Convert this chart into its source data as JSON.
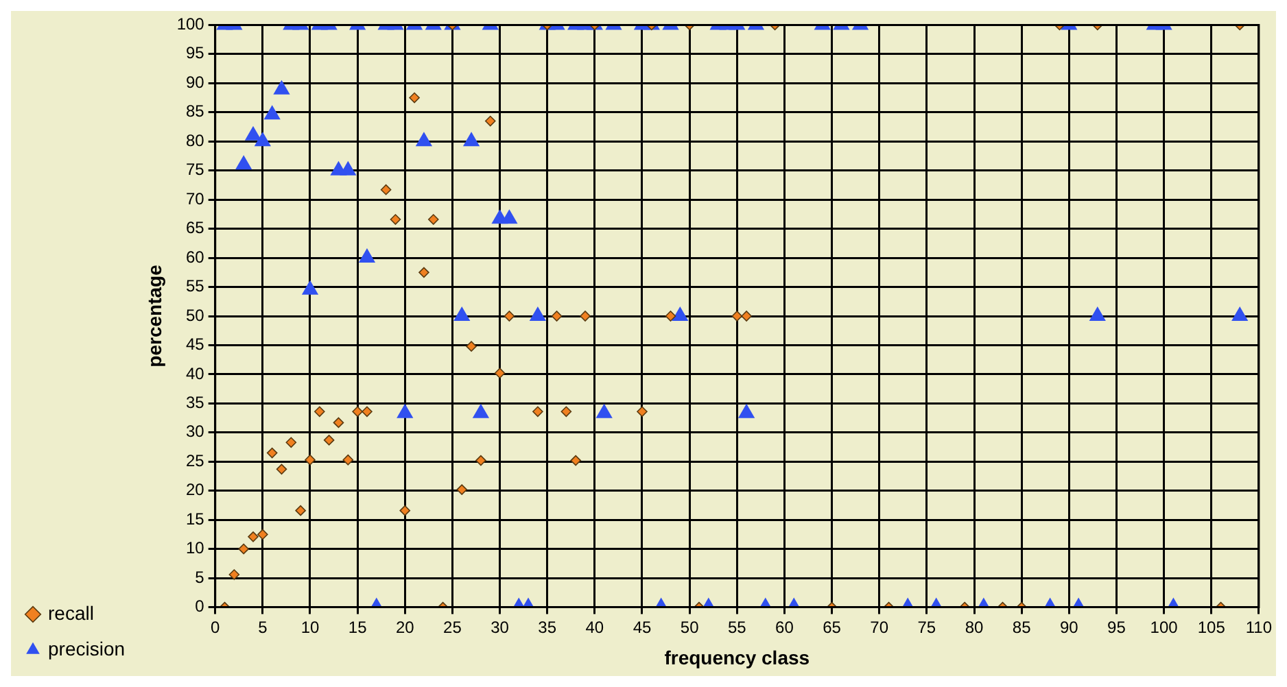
{
  "chart_data": {
    "type": "scatter",
    "xlabel": "frequency class",
    "ylabel": "percentage",
    "xlim": [
      0,
      110
    ],
    "ylim": [
      0,
      100
    ],
    "xticks": [
      0,
      5,
      10,
      15,
      20,
      25,
      30,
      35,
      40,
      45,
      50,
      55,
      60,
      65,
      70,
      75,
      80,
      85,
      90,
      95,
      100,
      105,
      110
    ],
    "yticks": [
      0,
      5,
      10,
      15,
      20,
      25,
      30,
      35,
      40,
      45,
      50,
      55,
      60,
      65,
      70,
      75,
      80,
      85,
      90,
      95,
      100
    ],
    "grid": true,
    "legend": "bottom left",
    "series": [
      {
        "name": "recall",
        "color": "#f08020",
        "marker": "diamond",
        "x": [
          1,
          2,
          3,
          4,
          5,
          6,
          7,
          8,
          9,
          10,
          11,
          12,
          13,
          14,
          15,
          16,
          18,
          19,
          20,
          21,
          22,
          23,
          24,
          25,
          26,
          27,
          28,
          29,
          30,
          31,
          34,
          35,
          36,
          37,
          38,
          39,
          40,
          45,
          46,
          48,
          50,
          51,
          55,
          56,
          59,
          65,
          71,
          79,
          83,
          85,
          89,
          93,
          106,
          108
        ],
        "values": [
          0,
          5.6,
          10,
          12.1,
          12.5,
          26.5,
          23.7,
          28.3,
          16.6,
          25.3,
          33.6,
          28.7,
          31.7,
          25.3,
          33.6,
          33.6,
          71.7,
          66.6,
          16.6,
          87.5,
          57.5,
          66.6,
          0,
          100,
          20.2,
          44.8,
          25.2,
          83.5,
          40.2,
          50,
          33.6,
          100,
          50,
          33.6,
          25.2,
          50,
          100,
          33.6,
          100,
          50,
          100,
          0,
          50,
          50,
          100,
          0,
          0,
          0,
          0,
          0,
          100,
          100,
          0,
          100
        ]
      },
      {
        "name": "precision",
        "color": "#3050f0",
        "marker": "triangle",
        "x": [
          1,
          2,
          3,
          4,
          5,
          6,
          7,
          8,
          9,
          10,
          11,
          12,
          13,
          14,
          15,
          16,
          17,
          18,
          19,
          20,
          21,
          22,
          23,
          25,
          26,
          27,
          28,
          29,
          30,
          31,
          32,
          33,
          34,
          35,
          36,
          38,
          39,
          40,
          41,
          42,
          45,
          46,
          47,
          48,
          49,
          52,
          53,
          54,
          55,
          56,
          57,
          58,
          61,
          64,
          66,
          68,
          73,
          76,
          81,
          88,
          90,
          91,
          93,
          99,
          100,
          101,
          108
        ],
        "values": [
          100,
          100,
          76,
          81,
          80,
          84.6,
          88.9,
          100,
          100,
          54.5,
          100,
          100,
          75,
          75,
          100,
          60,
          0,
          100,
          100,
          33.3,
          100,
          80,
          100,
          100,
          50,
          80,
          33.3,
          100,
          66.7,
          66.7,
          0,
          0,
          50,
          100,
          100,
          100,
          100,
          100,
          33.3,
          100,
          100,
          100,
          0,
          100,
          50,
          0,
          100,
          100,
          100,
          33.3,
          100,
          0,
          0,
          100,
          100,
          100,
          0,
          0,
          0,
          0,
          100,
          0,
          50,
          100,
          100,
          0,
          50
        ]
      }
    ]
  }
}
